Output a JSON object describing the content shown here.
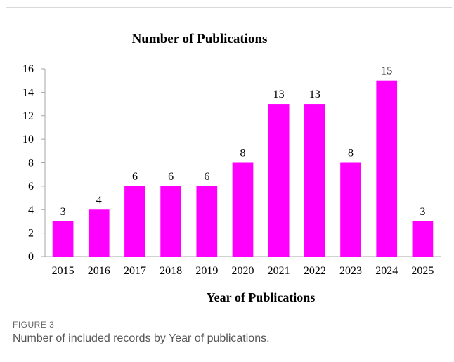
{
  "figure": {
    "label": "FIGURE 3",
    "caption": "Number of included records by Year of publications."
  },
  "colors": {
    "bar": "#ff00ff",
    "axis": "#a6a6a6",
    "text": "#000000"
  },
  "chart_data": {
    "type": "bar",
    "title": "Number of Publications",
    "xlabel": "Year of Publications",
    "ylabel": "",
    "categories": [
      "2015",
      "2016",
      "2017",
      "2018",
      "2019",
      "2020",
      "2021",
      "2022",
      "2023",
      "2024",
      "2025"
    ],
    "values": [
      3,
      4,
      6,
      6,
      6,
      8,
      13,
      13,
      8,
      15,
      3
    ],
    "ylim": [
      0,
      16
    ],
    "yticks": [
      0,
      2,
      4,
      6,
      8,
      10,
      12,
      14,
      16
    ],
    "data_labels": true,
    "grid": false,
    "legend": "none"
  }
}
